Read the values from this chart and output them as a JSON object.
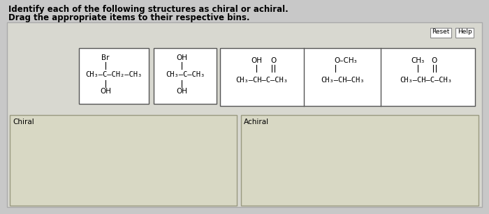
{
  "bg_color": "#c8c8c8",
  "inner_bg": "#d8d8d0",
  "title1": "Identify each of the following structures as chiral or achiral.",
  "title2": "Drag the appropriate items to their respective bins.",
  "title_fontsize": 8.5,
  "reset_btn": "Reset",
  "help_btn": "Help",
  "mol1_top": "Br",
  "mol1_mid": "CH₃–C–CH₂–CH₃",
  "mol1_bot": "OH",
  "mol2_top": "OH",
  "mol2_mid": "CH₃–C–CH₃",
  "mol2_bot": "OH",
  "mol3_top1": "OH",
  "mol3_top2": "O",
  "mol3_mid": "CH₃–CH–C–CH₃",
  "mol4_top": "O–CH₃",
  "mol4_mid": "CH₃–CH–CH₃",
  "mol5_top1": "CH₃",
  "mol5_top2": "O",
  "mol5_mid": "CH₃–CH–C–CH₃",
  "bin1_label": "Chiral",
  "bin2_label": "Achiral",
  "font_size": 7.5
}
